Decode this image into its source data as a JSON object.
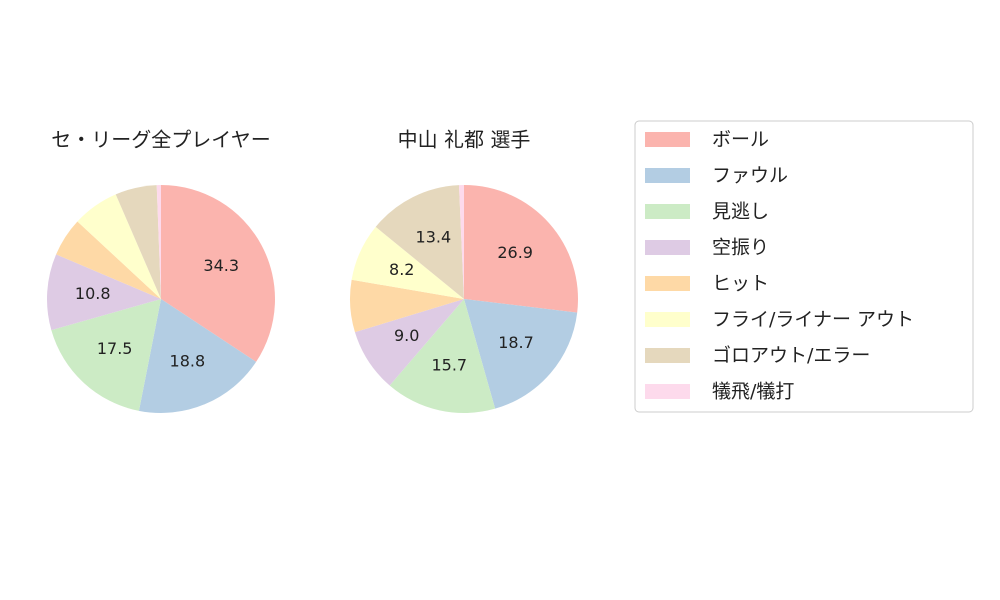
{
  "chart_data": [
    {
      "type": "pie",
      "title": "セ・リーグ全プレイヤー",
      "categories": [
        "ボール",
        "ファウル",
        "見逃し",
        "空振り",
        "ヒット",
        "フライ/ライナー アウト",
        "ゴロアウト/エラー",
        "犠飛/犠打"
      ],
      "values": [
        34.3,
        18.8,
        17.5,
        10.8,
        5.5,
        6.6,
        5.9,
        0.6
      ],
      "value_labels": [
        "34.3",
        "18.8",
        "17.5",
        "10.8",
        null,
        null,
        null,
        null
      ],
      "colors": [
        "#fbb4ae",
        "#b3cde3",
        "#ccebc5",
        "#decbe4",
        "#fed9a6",
        "#ffffcc",
        "#e5d8bd",
        "#fddaec"
      ]
    },
    {
      "type": "pie",
      "title": "中山 礼都  選手",
      "categories": [
        "ボール",
        "ファウル",
        "見逃し",
        "空振り",
        "ヒット",
        "フライ/ライナー アウト",
        "ゴロアウト/エラー",
        "犠飛/犠打"
      ],
      "values": [
        26.9,
        18.7,
        15.7,
        9.0,
        7.4,
        8.2,
        13.4,
        0.7
      ],
      "value_labels": [
        "26.9",
        "18.7",
        "15.7",
        "9.0",
        null,
        "8.2",
        "13.4",
        null
      ],
      "colors": [
        "#fbb4ae",
        "#b3cde3",
        "#ccebc5",
        "#decbe4",
        "#fed9a6",
        "#ffffcc",
        "#e5d8bd",
        "#fddaec"
      ]
    }
  ]
}
